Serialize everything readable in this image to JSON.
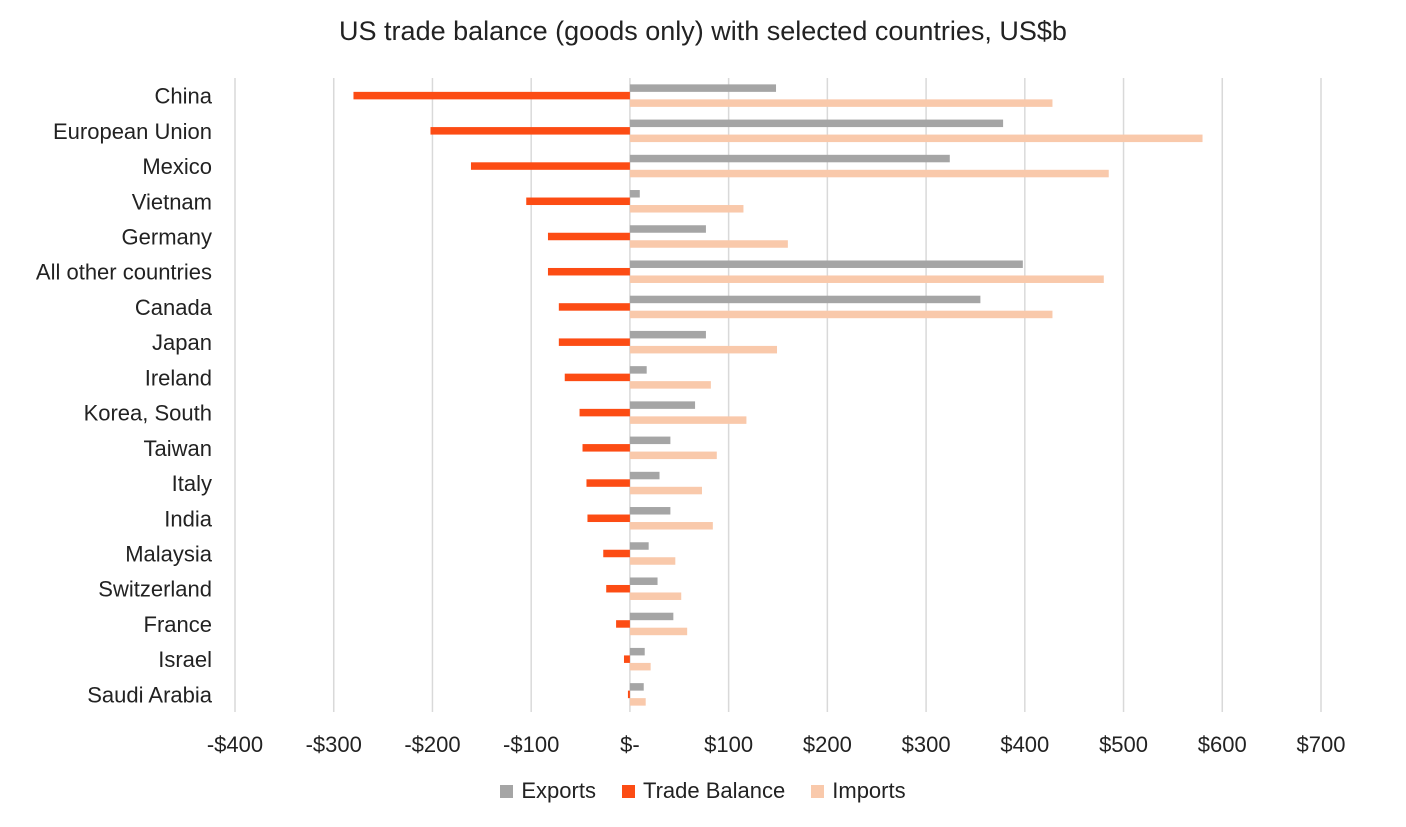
{
  "chart_data": {
    "type": "bar",
    "orientation": "horizontal",
    "title": "US trade balance (goods only) with selected countries, US$b",
    "categories": [
      "China",
      "European Union",
      "Mexico",
      "Vietnam",
      "Germany",
      "All other countries",
      "Canada",
      "Japan",
      "Ireland",
      "Korea, South",
      "Taiwan",
      "Italy",
      "India",
      "Malaysia",
      "Switzerland",
      "France",
      "Israel",
      "Saudi Arabia"
    ],
    "series": [
      {
        "name": "Exports",
        "color": "#a5a5a5",
        "values": [
          148,
          378,
          324,
          10,
          77,
          398,
          355,
          77,
          17,
          66,
          41,
          30,
          41,
          19,
          28,
          44,
          15,
          14
        ]
      },
      {
        "name": "Trade Balance",
        "color": "#fc4c14",
        "values": [
          -280,
          -202,
          -161,
          -105,
          -83,
          -83,
          -72,
          -72,
          -66,
          -51,
          -48,
          -44,
          -43,
          -27,
          -24,
          -14,
          -6,
          -2
        ]
      },
      {
        "name": "Imports",
        "color": "#f9c9ab",
        "values": [
          428,
          580,
          485,
          115,
          160,
          480,
          428,
          149,
          82,
          118,
          88,
          73,
          84,
          46,
          52,
          58,
          21,
          16
        ]
      }
    ],
    "xlim": [
      -400,
      700
    ],
    "xticks": [
      -400,
      -300,
      -200,
      -100,
      0,
      100,
      200,
      300,
      400,
      500,
      600,
      700
    ],
    "xtick_labels": [
      "-$400",
      "-$300",
      "-$200",
      "-$100",
      "$-",
      "$100",
      "$200",
      "$300",
      "$400",
      "$500",
      "$600",
      "$700"
    ],
    "grid": "vertical",
    "legend_position": "bottom",
    "legend": [
      "Exports",
      "Trade Balance",
      "Imports"
    ]
  }
}
